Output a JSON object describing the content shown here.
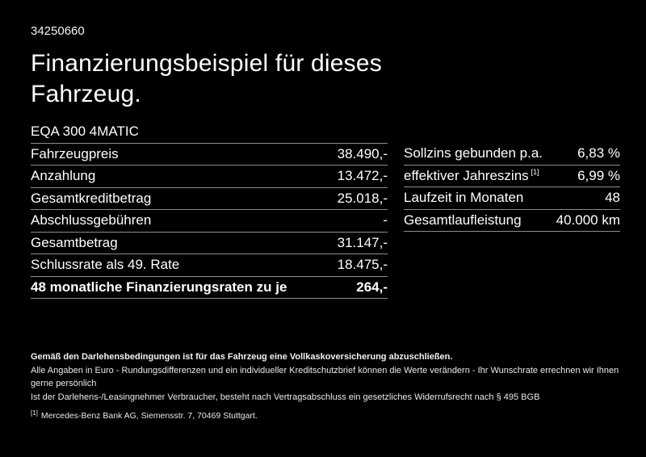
{
  "page": {
    "background_color": "#000000",
    "text_color": "#ffffff",
    "separator_color": "#8c8c8c"
  },
  "header": {
    "vehicle_id": "34250660",
    "title_line1": "Finanzierungsbeispiel für dieses",
    "title_line2": "Fahrzeug."
  },
  "left_table": {
    "model": "EQA 300 4MATIC",
    "rows": [
      {
        "label": "Fahrzeugpreis",
        "value": "38.490,-"
      },
      {
        "label": "Anzahlung",
        "value": "13.472,-"
      },
      {
        "label": "Gesamtkreditbetrag",
        "value": "25.018,-"
      },
      {
        "label": "Abschlussgebühren",
        "value": "-"
      },
      {
        "label": "Gesamtbetrag",
        "value": "31.147,-"
      },
      {
        "label": "Schlussrate als 49. Rate",
        "value": "18.475,-"
      }
    ],
    "total_row": {
      "label": "48 monatliche Finanzierungsraten zu je",
      "value": "264,-"
    }
  },
  "right_table": {
    "rows": [
      {
        "label": "Sollzins gebunden p.a.",
        "sup": "",
        "value": "6,83 %"
      },
      {
        "label": "effektiver Jahreszins",
        "sup": "[1]",
        "value": "6,99 %"
      },
      {
        "label": "Laufzeit in Monaten",
        "sup": "",
        "value": "48"
      },
      {
        "label": "Gesamtlaufleistung",
        "sup": "",
        "value": "40.000 km"
      }
    ]
  },
  "footer": {
    "insurance_note": "Gemäß den Darlehensbedingungen ist für das Fahrzeug eine Vollkaskoversicherung abzuschließen.",
    "line2": "Alle Angaben in Euro - Rundungsdifferenzen und ein individueller Kreditschutzbrief können die Werte verändern - Ihr Wunschrate errechnen wir Ihnen gerne persönlich",
    "line3": "Ist der Darlehens-/Leasingnehmer Verbraucher, besteht nach Vertragsabschluss ein gesetzliches Widerrufsrecht nach § 495 BGB",
    "footnote_marker": "[1]",
    "footnote_text": "Mercedes-Benz Bank AG, Siemensstr. 7, 70469 Stuttgart."
  }
}
